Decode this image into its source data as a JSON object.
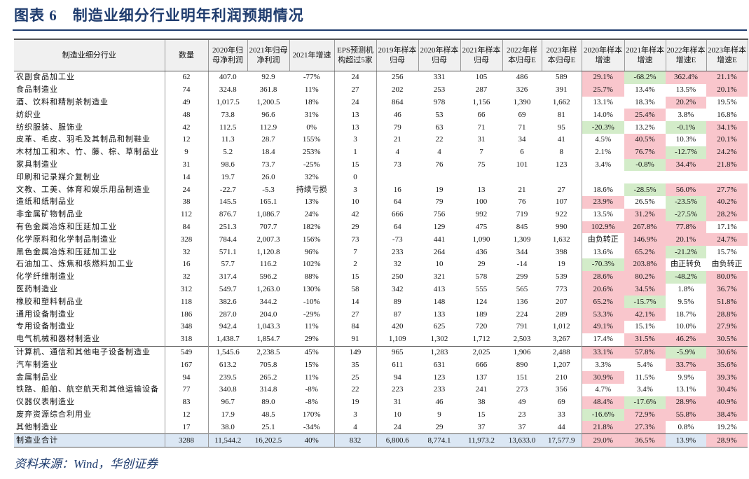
{
  "header": {
    "title": "图表 6　制造业细分行业明年利润预期情况"
  },
  "table": {
    "columns": [
      "制造业细分行业",
      "数量",
      "2020年归母净利润",
      "2021年归母净利润",
      "2021年增速",
      "EPS预测机构超过5家",
      "2019年样本归母",
      "2020年样本归母",
      "2021年样本归母",
      "2022年样本归母E",
      "2023年样本归母E",
      "2020年样本增速",
      "2021年样本增速",
      "2022年样本增速E",
      "2023年样本增速E"
    ],
    "rows": [
      [
        "农副食品加工业",
        "62",
        "407.0",
        "92.9",
        "-77%",
        "24",
        "256",
        "331",
        "105",
        "486",
        "589",
        "29.1%",
        "-68.2%",
        "362.4%",
        "21.1%"
      ],
      [
        "食品制造业",
        "74",
        "324.8",
        "361.8",
        "11%",
        "27",
        "202",
        "253",
        "287",
        "326",
        "391",
        "25.7%",
        "13.4%",
        "13.5%",
        "20.1%"
      ],
      [
        "酒、饮料和精制茶制造业",
        "49",
        "1,017.5",
        "1,200.5",
        "18%",
        "24",
        "864",
        "978",
        "1,156",
        "1,390",
        "1,662",
        "13.1%",
        "18.3%",
        "20.2%",
        "19.5%"
      ],
      [
        "纺织业",
        "48",
        "73.8",
        "96.6",
        "31%",
        "13",
        "46",
        "53",
        "66",
        "69",
        "81",
        "14.0%",
        "25.4%",
        "3.8%",
        "16.8%"
      ],
      [
        "纺织服装、服饰业",
        "42",
        "112.5",
        "112.9",
        "0%",
        "13",
        "79",
        "63",
        "71",
        "71",
        "95",
        "-20.3%",
        "13.2%",
        "-0.1%",
        "34.1%"
      ],
      [
        "皮革、毛皮、羽毛及其制品和制鞋业",
        "12",
        "11.3",
        "28.7",
        "155%",
        "3",
        "21",
        "22",
        "31",
        "34",
        "41",
        "4.5%",
        "40.5%",
        "10.3%",
        "20.1%"
      ],
      [
        "木材加工和木、竹、藤、棕、草制品业",
        "9",
        "5.2",
        "18.4",
        "253%",
        "1",
        "4",
        "4",
        "7",
        "6",
        "8",
        "2.1%",
        "76.7%",
        "-12.7%",
        "24.2%"
      ],
      [
        "家具制造业",
        "31",
        "98.6",
        "73.7",
        "-25%",
        "15",
        "73",
        "76",
        "75",
        "101",
        "123",
        "3.4%",
        "-0.8%",
        "34.4%",
        "21.8%"
      ],
      [
        "印刷和记录媒介复制业",
        "14",
        "19.7",
        "26.0",
        "32%",
        "0",
        null,
        null,
        null,
        null,
        null,
        null,
        null,
        null,
        null
      ],
      [
        "文教、工美、体育和娱乐用品制造业",
        "24",
        "-22.7",
        "-5.3",
        "持续亏损",
        "3",
        "16",
        "19",
        "13",
        "21",
        "27",
        "18.6%",
        "-28.5%",
        "56.0%",
        "27.7%"
      ],
      [
        "造纸和纸制品业",
        "38",
        "145.5",
        "165.1",
        "13%",
        "10",
        "64",
        "79",
        "100",
        "76",
        "107",
        "23.9%",
        "26.5%",
        "-23.5%",
        "40.2%"
      ],
      [
        "非金属矿物制品业",
        "112",
        "876.7",
        "1,086.7",
        "24%",
        "42",
        "666",
        "756",
        "992",
        "719",
        "922",
        "13.5%",
        "31.2%",
        "-27.5%",
        "28.2%"
      ],
      [
        "有色金属冶炼和压延加工业",
        "84",
        "251.3",
        "707.7",
        "182%",
        "29",
        "64",
        "129",
        "475",
        "845",
        "990",
        "102.9%",
        "267.8%",
        "77.8%",
        "17.1%"
      ],
      [
        "化学原料和化学制品制造业",
        "328",
        "784.4",
        "2,007.3",
        "156%",
        "73",
        "-73",
        "441",
        "1,090",
        "1,309",
        "1,632",
        "由负转正",
        "146.9%",
        "20.1%",
        "24.7%"
      ],
      [
        "黑色金属冶炼和压延加工业",
        "32",
        "571.1",
        "1,120.8",
        "96%",
        "7",
        "233",
        "264",
        "436",
        "344",
        "398",
        "13.6%",
        "65.2%",
        "-21.2%",
        "15.7%"
      ],
      [
        "石油加工、炼焦和核燃料加工业",
        "16",
        "57.7",
        "116.2",
        "102%",
        "2",
        "32",
        "10",
        "29",
        "-14",
        "19",
        "-70.3%",
        "203.8%",
        "由正转负",
        "由负转正"
      ],
      [
        "化学纤维制造业",
        "32",
        "317.4",
        "596.2",
        "88%",
        "15",
        "250",
        "321",
        "578",
        "299",
        "539",
        "28.6%",
        "80.2%",
        "-48.2%",
        "80.0%"
      ],
      [
        "医药制造业",
        "312",
        "549.7",
        "1,263.0",
        "130%",
        "58",
        "342",
        "413",
        "555",
        "565",
        "773",
        "20.6%",
        "34.5%",
        "1.8%",
        "36.7%"
      ],
      [
        "橡胶和塑料制品业",
        "118",
        "382.6",
        "344.2",
        "-10%",
        "14",
        "89",
        "148",
        "124",
        "136",
        "207",
        "65.2%",
        "-15.7%",
        "9.5%",
        "51.8%"
      ],
      [
        "通用设备制造业",
        "186",
        "287.0",
        "204.0",
        "-29%",
        "27",
        "87",
        "133",
        "189",
        "224",
        "289",
        "53.3%",
        "42.1%",
        "18.7%",
        "28.8%"
      ],
      [
        "专用设备制造业",
        "348",
        "942.4",
        "1,043.3",
        "11%",
        "84",
        "420",
        "625",
        "720",
        "791",
        "1,012",
        "49.1%",
        "15.1%",
        "10.0%",
        "27.9%"
      ],
      [
        "电气机械和器材制造业",
        "318",
        "1,438.7",
        "1,854.7",
        "29%",
        "91",
        "1,109",
        "1,302",
        "1,712",
        "2,503",
        "3,267",
        "17.4%",
        "31.5%",
        "46.2%",
        "30.5%"
      ],
      [
        "计算机、通信和其他电子设备制造业",
        "549",
        "1,545.6",
        "2,238.5",
        "45%",
        "149",
        "965",
        "1,283",
        "2,025",
        "1,906",
        "2,488",
        "33.1%",
        "57.8%",
        "-5.9%",
        "30.6%"
      ],
      [
        "汽车制造业",
        "167",
        "613.2",
        "705.8",
        "15%",
        "35",
        "611",
        "631",
        "666",
        "890",
        "1,207",
        "3.3%",
        "5.4%",
        "33.7%",
        "35.6%"
      ],
      [
        "金属制品业",
        "94",
        "239.5",
        "265.2",
        "11%",
        "25",
        "94",
        "123",
        "137",
        "151",
        "210",
        "30.9%",
        "11.5%",
        "9.9%",
        "39.3%"
      ],
      [
        "铁路、船舶、航空航天和其他运输设备",
        "77",
        "340.8",
        "314.8",
        "-8%",
        "22",
        "223",
        "233",
        "241",
        "273",
        "356",
        "4.7%",
        "3.4%",
        "13.1%",
        "30.4%"
      ],
      [
        "仪器仪表制造业",
        "83",
        "96.7",
        "89.0",
        "-8%",
        "19",
        "31",
        "46",
        "38",
        "49",
        "69",
        "48.4%",
        "-17.6%",
        "28.9%",
        "40.9%"
      ],
      [
        "废弃资源综合利用业",
        "12",
        "17.9",
        "48.5",
        "170%",
        "3",
        "10",
        "9",
        "15",
        "23",
        "33",
        "-16.6%",
        "72.9%",
        "55.8%",
        "38.4%"
      ],
      [
        "其他制造业",
        "17",
        "38.0",
        "25.1",
        "-34%",
        "4",
        "24",
        "29",
        "37",
        "37",
        "44",
        "21.8%",
        "27.3%",
        "0.8%",
        "19.2%"
      ],
      [
        "制造业合计",
        "3288",
        "11,544.2",
        "16,202.5",
        "40%",
        "832",
        "6,800.6",
        "8,774.1",
        "11,973.2",
        "13,633.0",
        "17,577.9",
        "29.0%",
        "36.5%",
        "13.9%",
        "28.9%"
      ]
    ],
    "highlight_colors": {
      "r": "#f9c6cc",
      "g": "#d3ecc9"
    },
    "highlights": [
      "rgrr",
      "rwwr",
      "wwrw",
      "wrww",
      "gwgr",
      "wrwr",
      "wrgr",
      "wgrr",
      "wwww",
      "wgrr",
      "rwgr",
      "wrgr",
      "rrrw",
      "wrrr",
      "wrgw",
      "grww",
      "rrgr",
      "rrwr",
      "rgwr",
      "rrwr",
      "rwwr",
      "wrrr",
      "rrgr",
      "wwrr",
      "rwwr",
      "wwwr",
      "rgrr",
      "grrr",
      "rrww",
      "rrwr"
    ]
  },
  "footer": {
    "source": "资料来源：Wind，华创证券"
  }
}
